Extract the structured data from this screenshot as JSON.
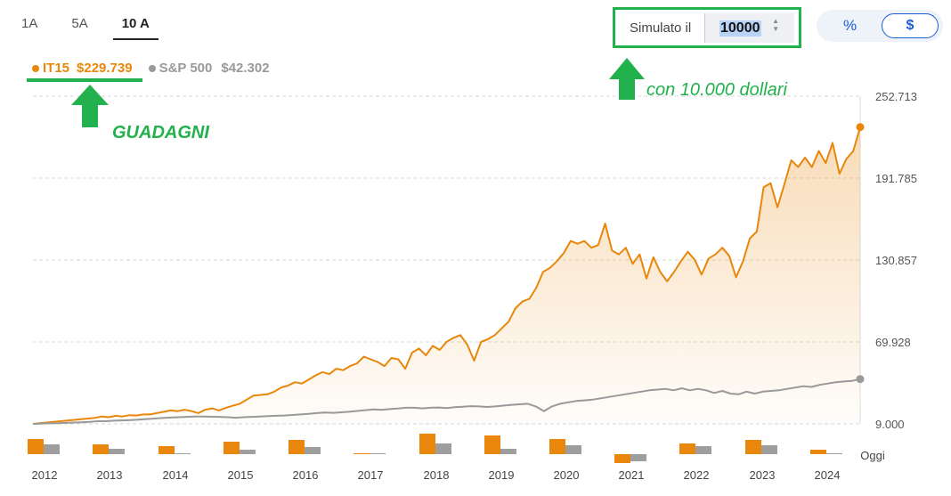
{
  "tabs": [
    {
      "label": "1A",
      "active": false
    },
    {
      "label": "5A",
      "active": false
    },
    {
      "label": "10 A",
      "active": true
    }
  ],
  "legend": {
    "primary": {
      "name": "IT15",
      "value": "$229.739",
      "color": "#e8870c"
    },
    "secondary": {
      "name": "S&P 500",
      "value": "$42.302",
      "color": "#999999"
    }
  },
  "simulator": {
    "label": "Simulato il",
    "value": "10000"
  },
  "toggle": {
    "percent": "%",
    "dollar": "$"
  },
  "annotations": {
    "guadagni": "GUADAGNI",
    "dollari": "con 10.000 dollari"
  },
  "chart_data": {
    "type": "line",
    "y_ticks": [
      "252.713",
      "191.785",
      "130.857",
      "69.928",
      "9.000"
    ],
    "ylim": [
      9000,
      252713
    ],
    "x_tick_labels": [
      "2012",
      "2013",
      "2014",
      "2015",
      "2016",
      "2017",
      "2018",
      "2019",
      "2020",
      "2021",
      "2022",
      "2023",
      "2024",
      "Oggi"
    ],
    "series": [
      {
        "name": "IT15",
        "color": "#e8870c",
        "values": [
          9000,
          9500,
          10000,
          10500,
          11000,
          11500,
          12000,
          12500,
          13000,
          13500,
          14500,
          14000,
          15000,
          14500,
          15500,
          15200,
          16000,
          16000,
          17000,
          18000,
          19000,
          18500,
          19500,
          18500,
          17000,
          19500,
          20500,
          19000,
          21000,
          22500,
          24000,
          27000,
          30000,
          30500,
          31000,
          33000,
          36000,
          37500,
          40000,
          39000,
          42000,
          45000,
          47500,
          46000,
          50000,
          49000,
          52000,
          54000,
          59000,
          57000,
          55000,
          52000,
          58000,
          57000,
          50000,
          62000,
          65000,
          60000,
          67000,
          64000,
          70000,
          73000,
          75000,
          68000,
          56000,
          70000,
          72000,
          75000,
          80000,
          85000,
          95000,
          100000,
          102000,
          110000,
          122000,
          125000,
          130000,
          136000,
          145000,
          143000,
          145000,
          140000,
          142000,
          158000,
          138000,
          135000,
          140000,
          128000,
          135000,
          117000,
          133000,
          122000,
          115000,
          122000,
          130000,
          137000,
          131000,
          120000,
          132000,
          135000,
          140000,
          134000,
          118000,
          130000,
          147000,
          152000,
          185000,
          188000,
          170000,
          187000,
          205000,
          200000,
          207000,
          200000,
          212000,
          203000,
          218000,
          195000,
          206000,
          212000,
          229739
        ]
      },
      {
        "name": "S&P 500",
        "color": "#999999",
        "values": [
          9000,
          9200,
          9400,
          9500,
          9700,
          10000,
          10200,
          10500,
          11000,
          11000,
          11400,
          11600,
          11800,
          12200,
          12600,
          13000,
          13400,
          13700,
          14000,
          14200,
          14500,
          14400,
          14300,
          14200,
          14000,
          13600,
          14000,
          14200,
          14500,
          14800,
          15000,
          15200,
          15600,
          16000,
          16500,
          17000,
          17500,
          17200,
          17600,
          18000,
          18600,
          19200,
          19800,
          19400,
          20000,
          20400,
          21000,
          21000,
          20500,
          21000,
          21200,
          20800,
          21400,
          21800,
          22200,
          22000,
          21600,
          22000,
          22600,
          23200,
          23600,
          24000,
          22000,
          18500,
          22000,
          24000,
          25000,
          26000,
          26500,
          27000,
          28000,
          29000,
          30000,
          31000,
          32000,
          33000,
          34000,
          34500,
          35000,
          34000,
          35500,
          34000,
          35000,
          34000,
          32000,
          33500,
          31500,
          31000,
          33000,
          31500,
          33000,
          33500,
          34000,
          35000,
          36000,
          37000,
          36500,
          38000,
          39000,
          40000,
          40500,
          41000,
          42302
        ]
      }
    ],
    "bars": [
      {
        "label": "2012",
        "values": [
          17,
          11
        ]
      },
      {
        "label": "2013",
        "values": [
          11,
          6
        ]
      },
      {
        "label": "2014",
        "values": [
          9,
          1
        ]
      },
      {
        "label": "2015",
        "values": [
          14,
          5
        ]
      },
      {
        "label": "2016",
        "values": [
          16,
          8
        ]
      },
      {
        "label": "2017",
        "values": [
          1,
          1
        ]
      },
      {
        "label": "2018",
        "values": [
          23,
          12
        ]
      },
      {
        "label": "2019",
        "values": [
          21,
          6
        ]
      },
      {
        "label": "2020",
        "values": [
          17,
          10
        ]
      },
      {
        "label": "2021",
        "values": [
          -10,
          -8
        ]
      },
      {
        "label": "2022",
        "values": [
          12,
          9
        ]
      },
      {
        "label": "2023",
        "values": [
          16,
          10
        ]
      },
      {
        "label": "2024",
        "values": [
          5,
          1
        ]
      }
    ],
    "grid": true
  }
}
